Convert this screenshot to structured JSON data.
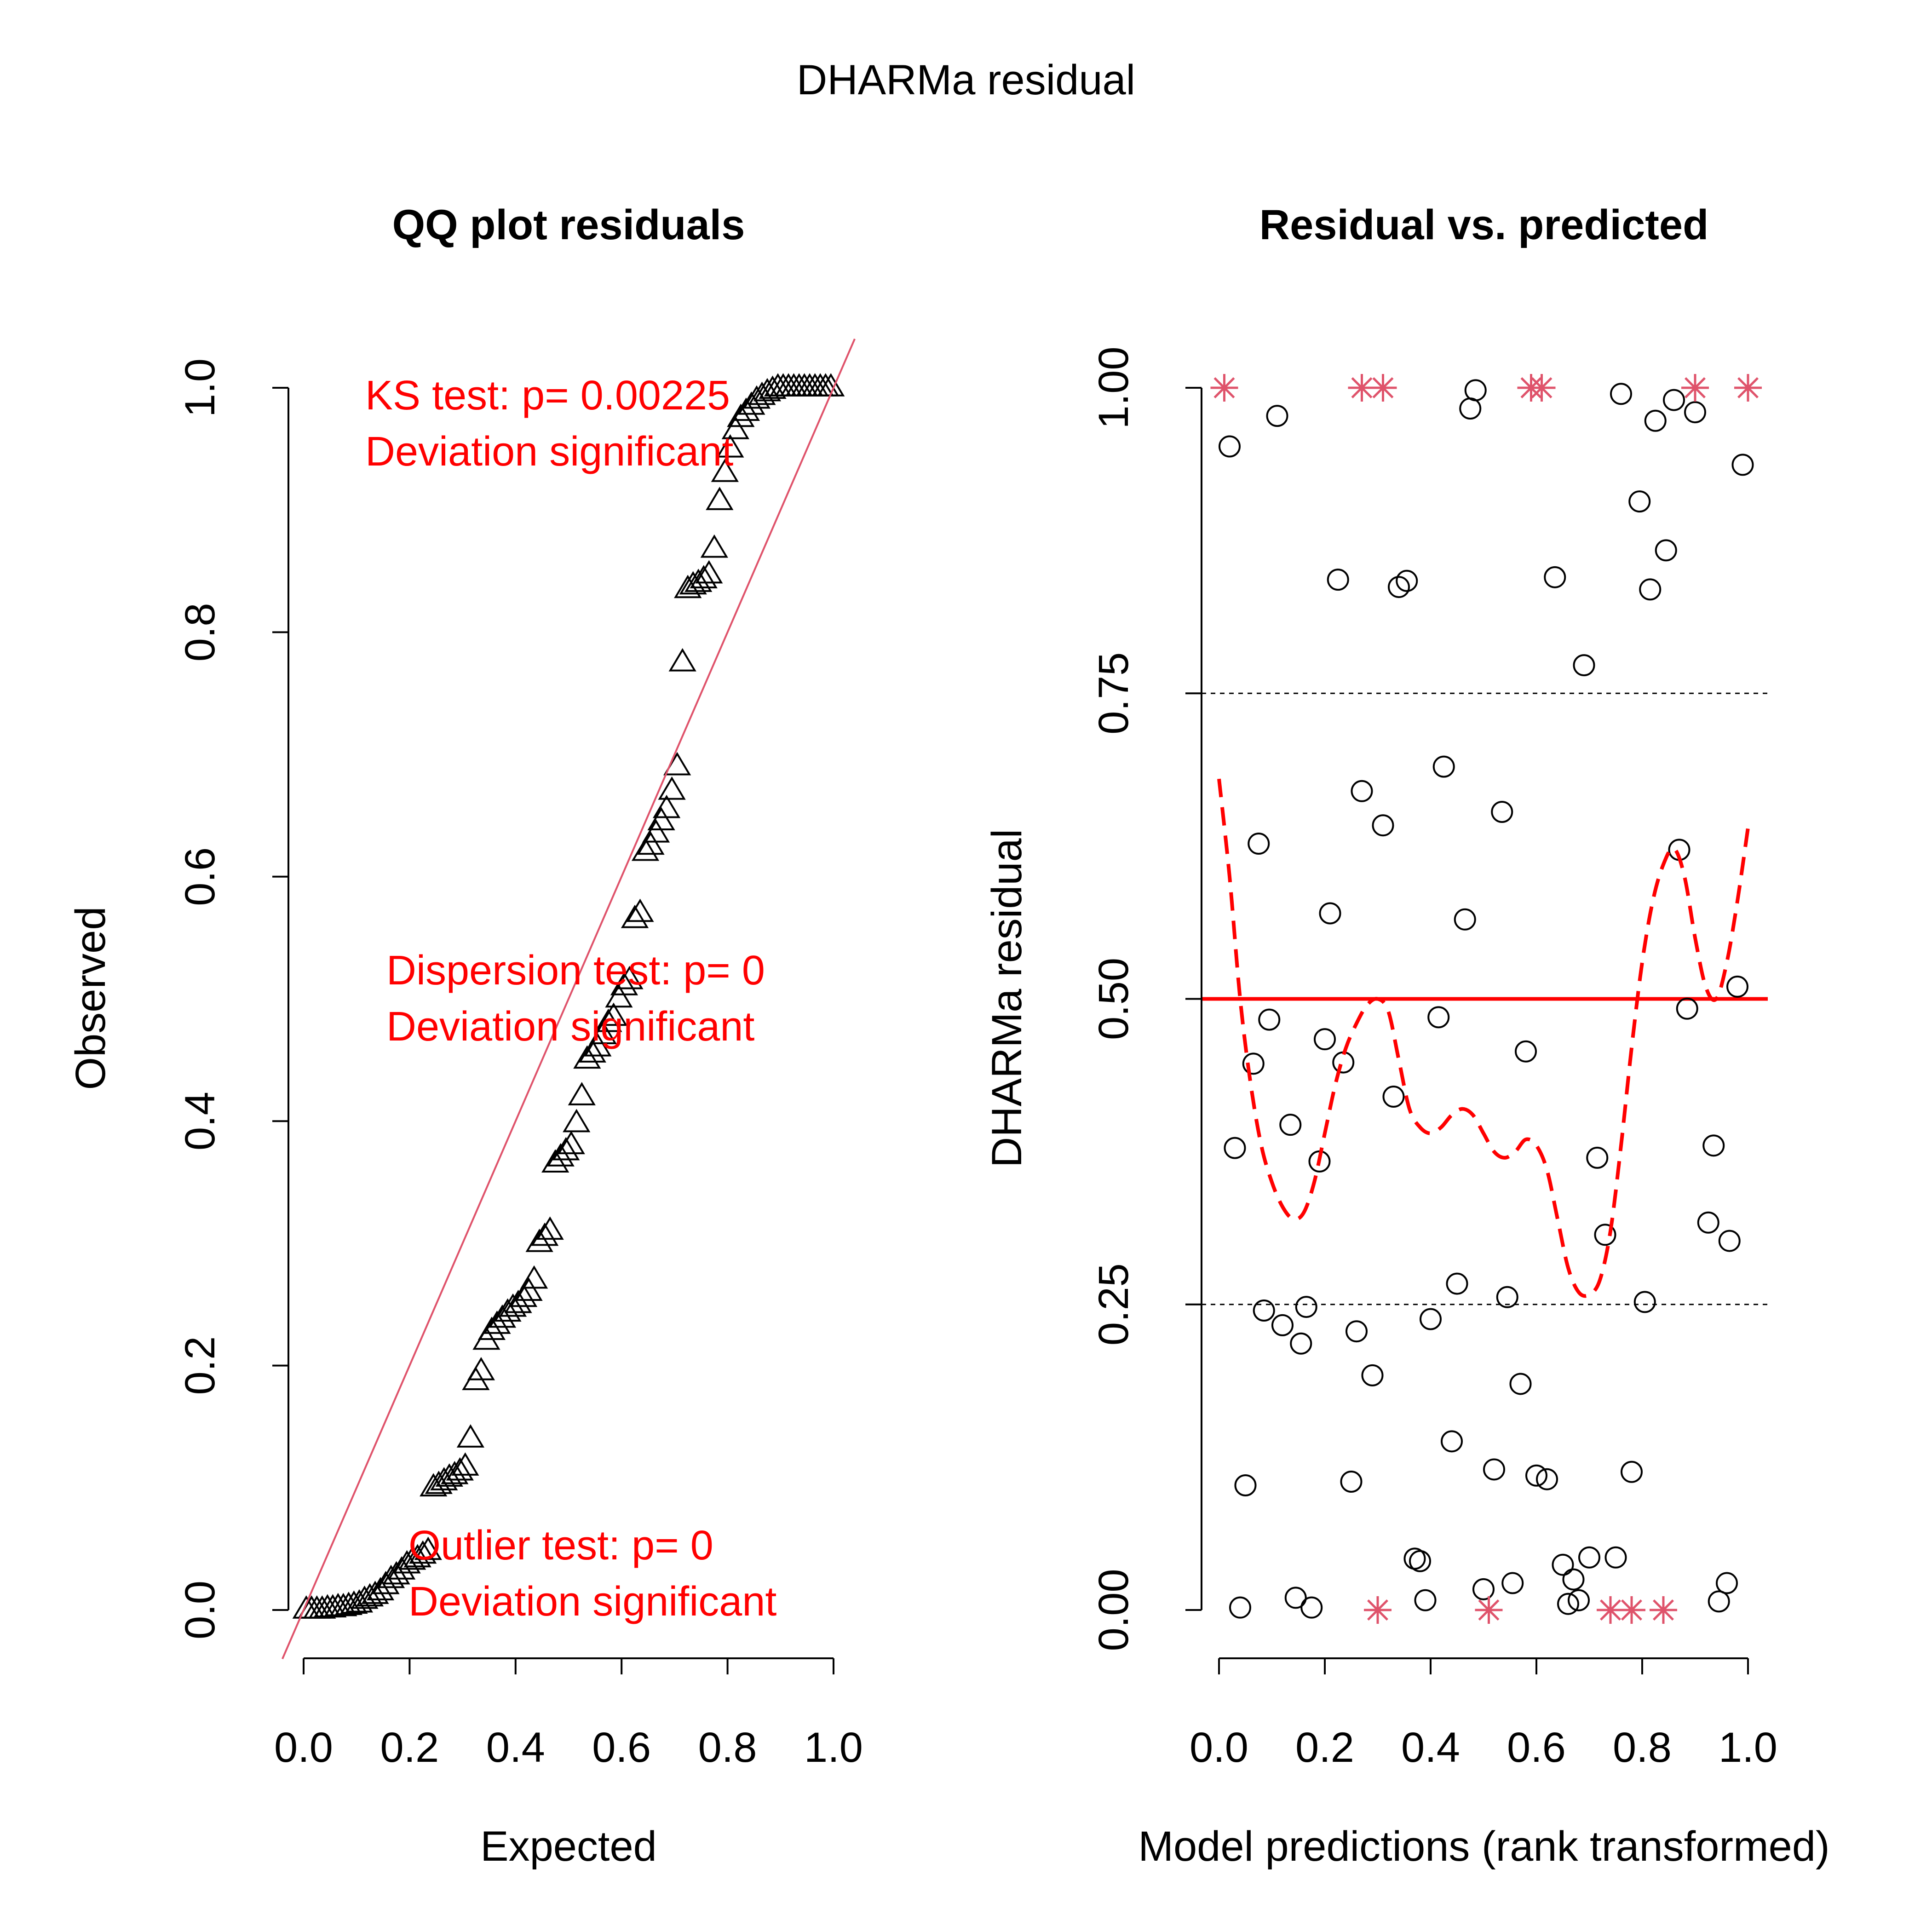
{
  "figure": {
    "title": "DHARMa residual"
  },
  "chart_data": [
    {
      "type": "scatter",
      "title": "QQ plot residuals",
      "xlabel": "Expected",
      "ylabel": "Observed",
      "xlim": [
        0,
        1
      ],
      "ylim": [
        0,
        1
      ],
      "x_ticks": [
        "0.0",
        "0.2",
        "0.4",
        "0.6",
        "0.8",
        "1.0"
      ],
      "y_ticks": [
        "0.0",
        "0.2",
        "0.4",
        "0.6",
        "0.8",
        "1.0"
      ],
      "marker": "triangle",
      "reference_line": "y = x",
      "reference_color": "#DF536B",
      "annotation_color": "#FF0000",
      "tests": [
        {
          "line1": "KS test: p= 0.00225",
          "line2": "Deviation  significant"
        },
        {
          "line1": "Dispersion test: p= 0",
          "line2": "Deviation  significant"
        },
        {
          "line1": "Outlier test: p= 0",
          "line2": "Deviation  significant"
        }
      ],
      "points": [
        [
          0.005,
          0.0
        ],
        [
          0.015,
          0.0
        ],
        [
          0.025,
          0.0
        ],
        [
          0.035,
          0.0
        ],
        [
          0.045,
          0.001
        ],
        [
          0.055,
          0.001
        ],
        [
          0.065,
          0.002
        ],
        [
          0.075,
          0.002
        ],
        [
          0.085,
          0.003
        ],
        [
          0.095,
          0.004
        ],
        [
          0.105,
          0.005
        ],
        [
          0.115,
          0.008
        ],
        [
          0.125,
          0.01
        ],
        [
          0.135,
          0.012
        ],
        [
          0.145,
          0.015
        ],
        [
          0.155,
          0.02
        ],
        [
          0.165,
          0.025
        ],
        [
          0.175,
          0.028
        ],
        [
          0.185,
          0.032
        ],
        [
          0.195,
          0.037
        ],
        [
          0.205,
          0.04
        ],
        [
          0.215,
          0.042
        ],
        [
          0.225,
          0.045
        ],
        [
          0.235,
          0.048
        ],
        [
          0.245,
          0.1
        ],
        [
          0.255,
          0.102
        ],
        [
          0.265,
          0.105
        ],
        [
          0.275,
          0.108
        ],
        [
          0.285,
          0.11
        ],
        [
          0.295,
          0.113
        ],
        [
          0.305,
          0.117
        ],
        [
          0.315,
          0.14
        ],
        [
          0.325,
          0.187
        ],
        [
          0.335,
          0.195
        ],
        [
          0.345,
          0.22
        ],
        [
          0.355,
          0.228
        ],
        [
          0.365,
          0.233
        ],
        [
          0.375,
          0.238
        ],
        [
          0.385,
          0.243
        ],
        [
          0.395,
          0.247
        ],
        [
          0.405,
          0.25
        ],
        [
          0.415,
          0.255
        ],
        [
          0.425,
          0.26
        ],
        [
          0.435,
          0.27
        ],
        [
          0.445,
          0.3
        ],
        [
          0.455,
          0.305
        ],
        [
          0.465,
          0.31
        ],
        [
          0.475,
          0.365
        ],
        [
          0.485,
          0.37
        ],
        [
          0.495,
          0.375
        ],
        [
          0.505,
          0.38
        ],
        [
          0.515,
          0.398
        ],
        [
          0.525,
          0.42
        ],
        [
          0.535,
          0.45
        ],
        [
          0.545,
          0.455
        ],
        [
          0.555,
          0.46
        ],
        [
          0.565,
          0.47
        ],
        [
          0.575,
          0.48
        ],
        [
          0.585,
          0.485
        ],
        [
          0.595,
          0.5
        ],
        [
          0.605,
          0.51
        ],
        [
          0.615,
          0.515
        ],
        [
          0.625,
          0.565
        ],
        [
          0.635,
          0.57
        ],
        [
          0.645,
          0.62
        ],
        [
          0.655,
          0.625
        ],
        [
          0.665,
          0.635
        ],
        [
          0.675,
          0.645
        ],
        [
          0.685,
          0.655
        ],
        [
          0.695,
          0.67
        ],
        [
          0.705,
          0.69
        ],
        [
          0.715,
          0.775
        ],
        [
          0.725,
          0.835
        ],
        [
          0.735,
          0.838
        ],
        [
          0.745,
          0.84
        ],
        [
          0.755,
          0.843
        ],
        [
          0.765,
          0.847
        ],
        [
          0.775,
          0.868
        ],
        [
          0.785,
          0.907
        ],
        [
          0.795,
          0.93
        ],
        [
          0.805,
          0.95
        ],
        [
          0.815,
          0.965
        ],
        [
          0.825,
          0.975
        ],
        [
          0.835,
          0.98
        ],
        [
          0.845,
          0.985
        ],
        [
          0.855,
          0.99
        ],
        [
          0.865,
          0.993
        ],
        [
          0.875,
          0.996
        ],
        [
          0.885,
          0.998
        ],
        [
          0.895,
          1.0
        ],
        [
          0.905,
          1.0
        ],
        [
          0.915,
          1.0
        ],
        [
          0.925,
          1.0
        ],
        [
          0.935,
          1.0
        ],
        [
          0.945,
          1.0
        ],
        [
          0.955,
          1.0
        ],
        [
          0.965,
          1.0
        ],
        [
          0.975,
          1.0
        ],
        [
          0.985,
          1.0
        ],
        [
          0.995,
          1.0
        ]
      ]
    },
    {
      "type": "scatter",
      "title": "Residual vs. predicted",
      "xlabel": "Model predictions (rank transformed)",
      "ylabel": "DHARMa residual",
      "xlim": [
        0,
        1
      ],
      "ylim": [
        0,
        1
      ],
      "x_ticks": [
        "0.0",
        "0.2",
        "0.4",
        "0.6",
        "0.8",
        "1.0"
      ],
      "y_ticks": [
        "0.00",
        "0.25",
        "0.50",
        "0.75",
        "1.00"
      ],
      "marker": "circle",
      "outlier_marker": "asterisk",
      "outlier_color": "#DF536B",
      "reference_lines": [
        0.25,
        0.5,
        0.75
      ],
      "reference_solid": 0.5,
      "smooth_color": "#FF0000",
      "points": [
        [
          0.02,
          0.952
        ],
        [
          0.03,
          0.378
        ],
        [
          0.04,
          0.002
        ],
        [
          0.05,
          0.102
        ],
        [
          0.065,
          0.447
        ],
        [
          0.075,
          0.627
        ],
        [
          0.085,
          0.245
        ],
        [
          0.095,
          0.483
        ],
        [
          0.11,
          0.977
        ],
        [
          0.12,
          0.233
        ],
        [
          0.135,
          0.397
        ],
        [
          0.145,
          0.01
        ],
        [
          0.155,
          0.218
        ],
        [
          0.165,
          0.248
        ],
        [
          0.175,
          0.002
        ],
        [
          0.19,
          0.367
        ],
        [
          0.2,
          0.467
        ],
        [
          0.21,
          0.57
        ],
        [
          0.225,
          0.843
        ],
        [
          0.235,
          0.448
        ],
        [
          0.25,
          0.105
        ],
        [
          0.26,
          0.228
        ],
        [
          0.27,
          0.67
        ],
        [
          0.29,
          0.192
        ],
        [
          0.31,
          0.642
        ],
        [
          0.33,
          0.42
        ],
        [
          0.34,
          0.837
        ],
        [
          0.355,
          0.842
        ],
        [
          0.37,
          0.042
        ],
        [
          0.38,
          0.04
        ],
        [
          0.39,
          0.008
        ],
        [
          0.4,
          0.238
        ],
        [
          0.415,
          0.485
        ],
        [
          0.425,
          0.69
        ],
        [
          0.44,
          0.138
        ],
        [
          0.45,
          0.267
        ],
        [
          0.465,
          0.565
        ],
        [
          0.475,
          0.983
        ],
        [
          0.485,
          0.998
        ],
        [
          0.5,
          0.017
        ],
        [
          0.52,
          0.115
        ],
        [
          0.535,
          0.653
        ],
        [
          0.545,
          0.256
        ],
        [
          0.555,
          0.022
        ],
        [
          0.57,
          0.185
        ],
        [
          0.58,
          0.457
        ],
        [
          0.6,
          0.11
        ],
        [
          0.62,
          0.107
        ],
        [
          0.635,
          0.845
        ],
        [
          0.65,
          0.037
        ],
        [
          0.66,
          0.005
        ],
        [
          0.67,
          0.025
        ],
        [
          0.68,
          0.008
        ],
        [
          0.69,
          0.773
        ],
        [
          0.7,
          0.043
        ],
        [
          0.715,
          0.37
        ],
        [
          0.73,
          0.307
        ],
        [
          0.75,
          0.043
        ],
        [
          0.76,
          0.995
        ],
        [
          0.78,
          0.113
        ],
        [
          0.795,
          0.907
        ],
        [
          0.805,
          0.252
        ],
        [
          0.815,
          0.835
        ],
        [
          0.825,
          0.973
        ],
        [
          0.845,
          0.867
        ],
        [
          0.86,
          0.99
        ],
        [
          0.87,
          0.622
        ],
        [
          0.885,
          0.492
        ],
        [
          0.9,
          0.98
        ],
        [
          0.925,
          0.317
        ],
        [
          0.935,
          0.38
        ],
        [
          0.945,
          0.007
        ],
        [
          0.96,
          0.022
        ],
        [
          0.965,
          0.302
        ],
        [
          0.98,
          0.51
        ],
        [
          0.99,
          0.937
        ]
      ],
      "outliers": [
        [
          0.01,
          1.0
        ],
        [
          0.27,
          1.0
        ],
        [
          0.31,
          1.0
        ],
        [
          0.3,
          0.0
        ],
        [
          0.51,
          0.0
        ],
        [
          0.59,
          1.0
        ],
        [
          0.61,
          1.0
        ],
        [
          0.74,
          0.0
        ],
        [
          0.78,
          0.0
        ],
        [
          0.84,
          0.0
        ],
        [
          0.9,
          1.0
        ],
        [
          1.0,
          1.0
        ]
      ],
      "smooth": [
        [
          0.0,
          0.68
        ],
        [
          0.02,
          0.6
        ],
        [
          0.04,
          0.5
        ],
        [
          0.06,
          0.43
        ],
        [
          0.08,
          0.38
        ],
        [
          0.1,
          0.35
        ],
        [
          0.12,
          0.33
        ],
        [
          0.14,
          0.32
        ],
        [
          0.16,
          0.325
        ],
        [
          0.18,
          0.35
        ],
        [
          0.2,
          0.39
        ],
        [
          0.22,
          0.43
        ],
        [
          0.24,
          0.46
        ],
        [
          0.26,
          0.48
        ],
        [
          0.28,
          0.495
        ],
        [
          0.3,
          0.5
        ],
        [
          0.32,
          0.49
        ],
        [
          0.34,
          0.45
        ],
        [
          0.36,
          0.41
        ],
        [
          0.38,
          0.395
        ],
        [
          0.4,
          0.39
        ],
        [
          0.42,
          0.395
        ],
        [
          0.44,
          0.405
        ],
        [
          0.46,
          0.41
        ],
        [
          0.48,
          0.405
        ],
        [
          0.5,
          0.39
        ],
        [
          0.52,
          0.375
        ],
        [
          0.54,
          0.37
        ],
        [
          0.56,
          0.375
        ],
        [
          0.58,
          0.385
        ],
        [
          0.6,
          0.38
        ],
        [
          0.62,
          0.36
        ],
        [
          0.64,
          0.32
        ],
        [
          0.66,
          0.28
        ],
        [
          0.68,
          0.26
        ],
        [
          0.7,
          0.258
        ],
        [
          0.72,
          0.27
        ],
        [
          0.74,
          0.31
        ],
        [
          0.76,
          0.38
        ],
        [
          0.78,
          0.46
        ],
        [
          0.8,
          0.53
        ],
        [
          0.82,
          0.58
        ],
        [
          0.84,
          0.61
        ],
        [
          0.86,
          0.623
        ],
        [
          0.88,
          0.6
        ],
        [
          0.9,
          0.55
        ],
        [
          0.92,
          0.51
        ],
        [
          0.94,
          0.5
        ],
        [
          0.96,
          0.53
        ],
        [
          0.98,
          0.58
        ],
        [
          1.0,
          0.64
        ]
      ]
    }
  ]
}
